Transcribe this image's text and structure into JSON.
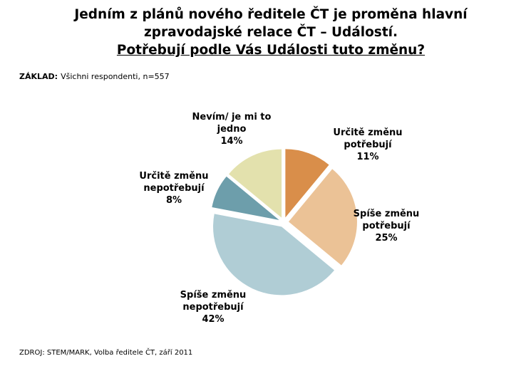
{
  "title": {
    "line1": "Jedním z plánů nového ředitele ČT je proměna hlavní",
    "line2": "zpravodajské relace ČT – Událostí.",
    "line3": "Potřebují podle Vás Události tuto změnu?"
  },
  "basis": {
    "label": "ZÁKLAD:",
    "text": "Všichni respondenti, n=557"
  },
  "source": {
    "text": "ZDROJ: STEM/MARK, Volba ředitele ČT, září 2011"
  },
  "chart_data": {
    "type": "pie",
    "title": "Potřebují podle Vás Události tuto změnu?",
    "legend": "none",
    "slices": [
      {
        "label_lines": [
          "Určitě změnu",
          "potřebují"
        ],
        "value": 11,
        "value_label": "11%",
        "color": "#D98E4A"
      },
      {
        "label_lines": [
          "Spíše změnu",
          "potřebují"
        ],
        "value": 25,
        "value_label": "25%",
        "color": "#EBC296"
      },
      {
        "label_lines": [
          "Spíše změnu",
          "nepotřebují"
        ],
        "value": 42,
        "value_label": "42%",
        "color": "#B0CDD5"
      },
      {
        "label_lines": [
          "Určitě změnu",
          "nepotřebují"
        ],
        "value": 8,
        "value_label": "8%",
        "color": "#6D9EAB"
      },
      {
        "label_lines": [
          "Nevím/ je mi to",
          "jedno"
        ],
        "value": 14,
        "value_label": "14%",
        "color": "#E3E1AD"
      }
    ]
  }
}
